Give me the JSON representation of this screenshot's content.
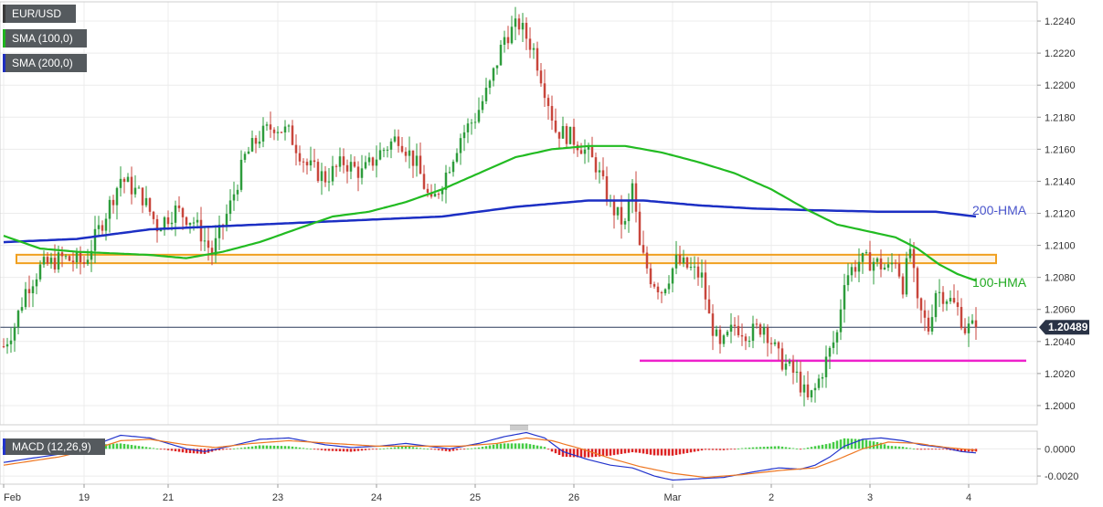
{
  "chart_data": [
    {
      "type": "candlestick",
      "symbol": "EUR/USD",
      "legend": [
        "EUR/USD",
        "SMA (100,0)",
        "SMA (200,0)"
      ],
      "legend_colors": [
        "#3a3a3a",
        "#1fb41f",
        "#1f2fbf"
      ],
      "colors": {
        "up": "#2e9c3c",
        "down": "#c8463c",
        "hma100": "#22bb22",
        "hma200": "#1c2fc4",
        "resistance": "#f0a020",
        "support": "#ee22cc",
        "grid": "#ececec",
        "price_line": "#2a3a5a"
      },
      "ylim": [
        1.1988,
        1.2252
      ],
      "yticks": [
        "1.2000",
        "1.2020",
        "1.2040",
        "1.2060",
        "1.2080",
        "1.2100",
        "1.2120",
        "1.2140",
        "1.2160",
        "1.2180",
        "1.2200",
        "1.2220",
        "1.2240"
      ],
      "xticks": [
        "Feb",
        "19",
        "21",
        "23",
        "24",
        "25",
        "26",
        "Mar",
        "2",
        "3",
        "4"
      ],
      "xtick_index": [
        0,
        22,
        45,
        75,
        102,
        129,
        156,
        183,
        210,
        237,
        264
      ],
      "candle_count": 267,
      "current_price": "1.20489",
      "current_price_value": 1.20489,
      "annotations": [
        {
          "text": "200-HMA",
          "color": "#4a55cc",
          "y": 1.2122
        },
        {
          "text": "100-HMA",
          "color": "#22aa22",
          "y": 1.2077
        }
      ],
      "resistance_zone": [
        1.209,
        1.2093
      ],
      "support_level": 1.2028,
      "path_anchors": [
        [
          0,
          1.2037
        ],
        [
          3,
          1.205
        ],
        [
          6,
          1.2072
        ],
        [
          10,
          1.2086
        ],
        [
          16,
          1.2092
        ],
        [
          22,
          1.2089
        ],
        [
          28,
          1.212
        ],
        [
          32,
          1.2142
        ],
        [
          38,
          1.213
        ],
        [
          42,
          1.2112
        ],
        [
          47,
          1.2122
        ],
        [
          52,
          1.2115
        ],
        [
          57,
          1.2095
        ],
        [
          62,
          1.2125
        ],
        [
          66,
          1.2155
        ],
        [
          70,
          1.2168
        ],
        [
          74,
          1.2175
        ],
        [
          78,
          1.217
        ],
        [
          83,
          1.215
        ],
        [
          88,
          1.2142
        ],
        [
          93,
          1.2152
        ],
        [
          98,
          1.2145
        ],
        [
          103,
          1.2158
        ],
        [
          108,
          1.2168
        ],
        [
          113,
          1.215
        ],
        [
          117,
          1.2125
        ],
        [
          121,
          1.2145
        ],
        [
          125,
          1.2168
        ],
        [
          129,
          1.218
        ],
        [
          133,
          1.22
        ],
        [
          137,
          1.223
        ],
        [
          141,
          1.2238
        ],
        [
          145,
          1.2222
        ],
        [
          149,
          1.219
        ],
        [
          151,
          1.2172
        ],
        [
          155,
          1.2168
        ],
        [
          158,
          1.2162
        ],
        [
          162,
          1.215
        ],
        [
          166,
          1.2125
        ],
        [
          170,
          1.2112
        ],
        [
          172,
          1.2138
        ],
        [
          174,
          1.2098
        ],
        [
          177,
          1.208
        ],
        [
          180,
          1.2072
        ],
        [
          184,
          1.209
        ],
        [
          188,
          1.2085
        ],
        [
          191,
          1.208
        ],
        [
          193,
          1.2055
        ],
        [
          196,
          1.2035
        ],
        [
          200,
          1.205
        ],
        [
          204,
          1.2045
        ],
        [
          208,
          1.205
        ],
        [
          212,
          1.203
        ],
        [
          217,
          1.2018
        ],
        [
          220,
          1.2003
        ],
        [
          222,
          1.201
        ],
        [
          225,
          1.2028
        ],
        [
          228,
          1.2045
        ],
        [
          230,
          1.208
        ],
        [
          234,
          1.209
        ],
        [
          238,
          1.209
        ],
        [
          242,
          1.2085
        ],
        [
          244,
          1.2092
        ],
        [
          246,
          1.2075
        ],
        [
          248,
          1.2098
        ],
        [
          250,
          1.2062
        ],
        [
          253,
          1.2048
        ],
        [
          255,
          1.2072
        ],
        [
          258,
          1.2068
        ],
        [
          261,
          1.206
        ],
        [
          263,
          1.2048
        ],
        [
          266,
          1.2049
        ]
      ],
      "hma200": [
        [
          0,
          1.2102
        ],
        [
          20,
          1.2104
        ],
        [
          40,
          1.211
        ],
        [
          60,
          1.2112
        ],
        [
          80,
          1.2114
        ],
        [
          100,
          1.2116
        ],
        [
          120,
          1.2118
        ],
        [
          140,
          1.2124
        ],
        [
          160,
          1.2128
        ],
        [
          175,
          1.2128
        ],
        [
          190,
          1.2125
        ],
        [
          205,
          1.2123
        ],
        [
          220,
          1.2122
        ],
        [
          240,
          1.2121
        ],
        [
          255,
          1.2121
        ],
        [
          266,
          1.2118
        ]
      ],
      "hma100": [
        [
          0,
          1.2106
        ],
        [
          10,
          1.2098
        ],
        [
          20,
          1.2096
        ],
        [
          30,
          1.2095
        ],
        [
          40,
          1.2094
        ],
        [
          50,
          1.2092
        ],
        [
          60,
          1.2096
        ],
        [
          70,
          1.2102
        ],
        [
          80,
          1.211
        ],
        [
          90,
          1.2118
        ],
        [
          100,
          1.2121
        ],
        [
          110,
          1.2127
        ],
        [
          120,
          1.2135
        ],
        [
          130,
          1.2145
        ],
        [
          140,
          1.2155
        ],
        [
          150,
          1.216
        ],
        [
          160,
          1.2162
        ],
        [
          170,
          1.2162
        ],
        [
          180,
          1.2158
        ],
        [
          190,
          1.2152
        ],
        [
          200,
          1.2145
        ],
        [
          210,
          1.2135
        ],
        [
          220,
          1.2122
        ],
        [
          228,
          1.2113
        ],
        [
          236,
          1.2109
        ],
        [
          244,
          1.2105
        ],
        [
          250,
          1.2098
        ],
        [
          256,
          1.2088
        ],
        [
          261,
          1.2082
        ],
        [
          266,
          1.2078
        ]
      ]
    },
    {
      "type": "macd",
      "label": "MACD (12,26,9)",
      "ylim": [
        -0.0026,
        0.0013
      ],
      "yticks": [
        "0.0000",
        "-0.0020"
      ],
      "macd": [
        [
          0,
          -0.001
        ],
        [
          10,
          -0.0006
        ],
        [
          20,
          -0.0002
        ],
        [
          28,
          0.0006
        ],
        [
          32,
          0.001
        ],
        [
          40,
          0.0008
        ],
        [
          50,
          0.0
        ],
        [
          55,
          -0.0002
        ],
        [
          62,
          0.0002
        ],
        [
          70,
          0.0007
        ],
        [
          78,
          0.0008
        ],
        [
          88,
          0.0003
        ],
        [
          95,
          0.0001
        ],
        [
          103,
          0.0002
        ],
        [
          110,
          0.0004
        ],
        [
          116,
          0.0002
        ],
        [
          122,
          0.0
        ],
        [
          130,
          0.0004
        ],
        [
          137,
          0.0009
        ],
        [
          143,
          0.0012
        ],
        [
          148,
          0.0008
        ],
        [
          153,
          -0.0002
        ],
        [
          160,
          -0.0008
        ],
        [
          166,
          -0.0012
        ],
        [
          172,
          -0.0014
        ],
        [
          178,
          -0.002
        ],
        [
          183,
          -0.0023
        ],
        [
          190,
          -0.0022
        ],
        [
          197,
          -0.0021
        ],
        [
          205,
          -0.0017
        ],
        [
          212,
          -0.0014
        ],
        [
          218,
          -0.0015
        ],
        [
          222,
          -0.0012
        ],
        [
          226,
          -0.0006
        ],
        [
          230,
          0.0002
        ],
        [
          235,
          0.0007
        ],
        [
          240,
          0.0008
        ],
        [
          246,
          0.0006
        ],
        [
          251,
          0.0003
        ],
        [
          257,
          0.0001
        ],
        [
          262,
          -0.0002
        ],
        [
          266,
          -0.0003
        ]
      ],
      "signal": [
        [
          0,
          -0.0012
        ],
        [
          15,
          -0.0006
        ],
        [
          25,
          0.0
        ],
        [
          32,
          0.0006
        ],
        [
          40,
          0.0007
        ],
        [
          50,
          0.0003
        ],
        [
          58,
          0.0001
        ],
        [
          68,
          0.0004
        ],
        [
          78,
          0.0006
        ],
        [
          90,
          0.0004
        ],
        [
          102,
          0.0002
        ],
        [
          115,
          0.0002
        ],
        [
          125,
          0.0002
        ],
        [
          135,
          0.0004
        ],
        [
          143,
          0.0008
        ],
        [
          150,
          0.0006
        ],
        [
          158,
          0.0
        ],
        [
          166,
          -0.0007
        ],
        [
          174,
          -0.0013
        ],
        [
          183,
          -0.0018
        ],
        [
          192,
          -0.0021
        ],
        [
          202,
          -0.0019
        ],
        [
          212,
          -0.0016
        ],
        [
          222,
          -0.0014
        ],
        [
          228,
          -0.0008
        ],
        [
          235,
          0.0
        ],
        [
          242,
          0.0005
        ],
        [
          250,
          0.0004
        ],
        [
          258,
          0.0001
        ],
        [
          266,
          -0.0001
        ]
      ]
    }
  ]
}
